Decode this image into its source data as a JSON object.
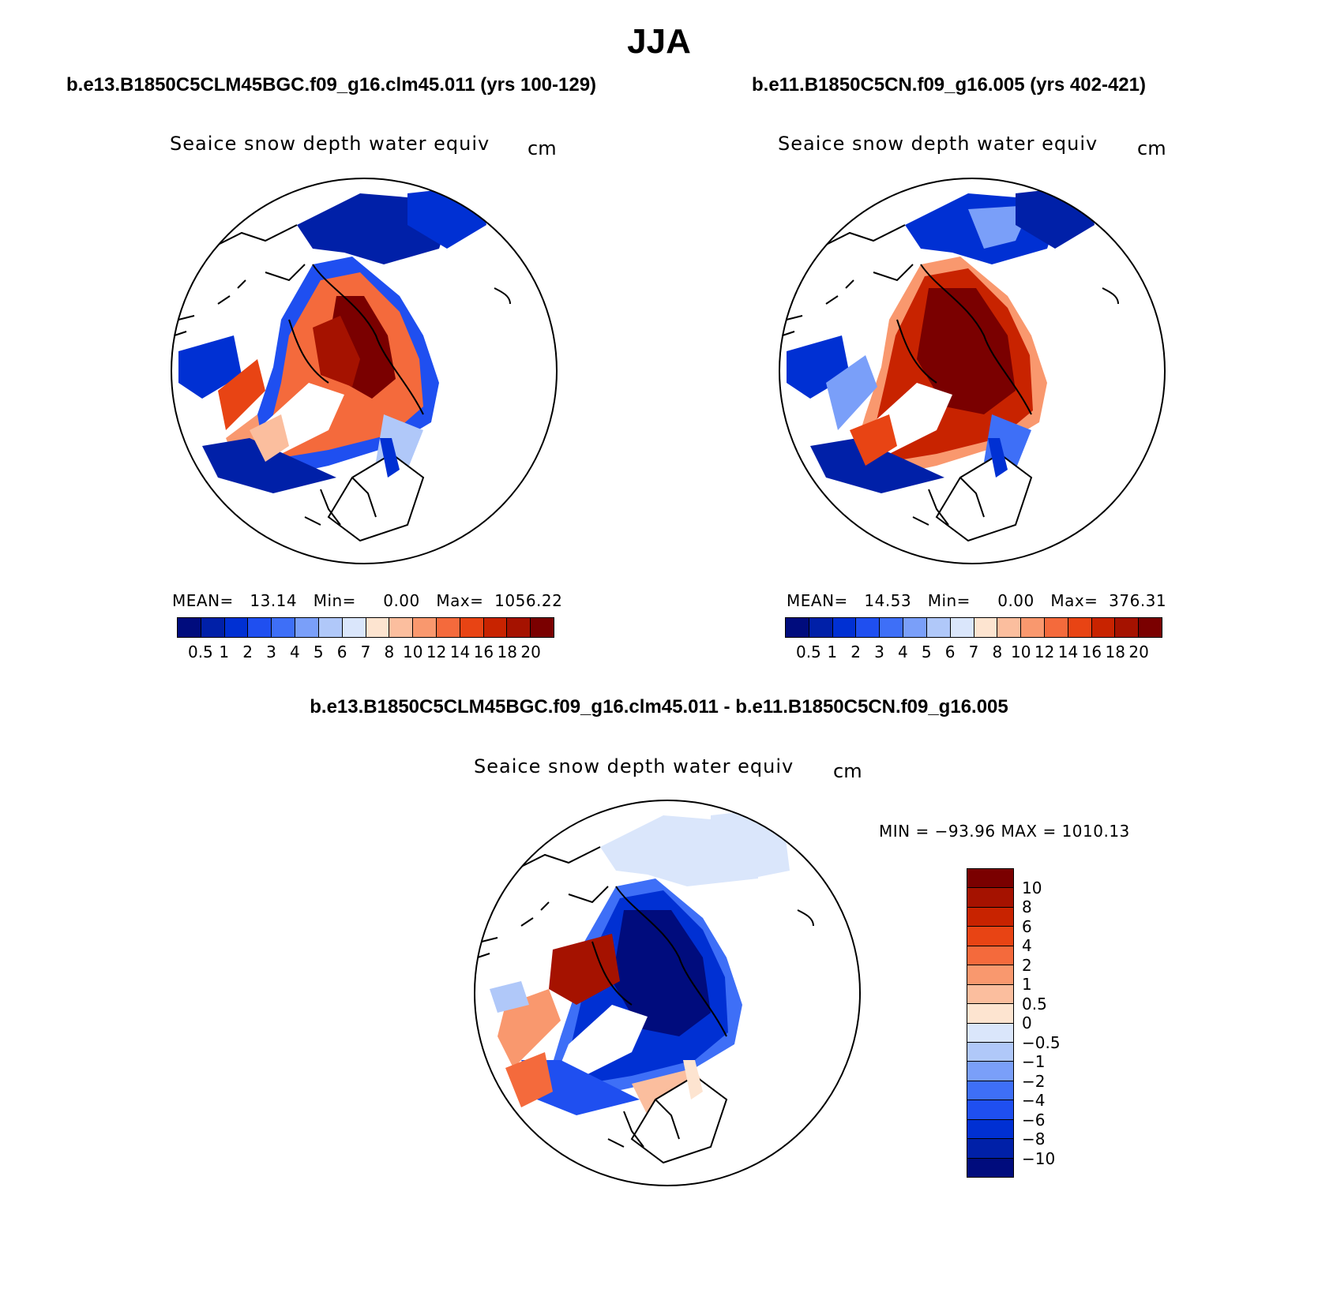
{
  "title": "JJA",
  "panels": [
    {
      "case_title": "b.e13.B1850C5CLM45BGC.f09_g16.clm45.011 (yrs 100-129)",
      "var_title": "Seaice snow depth water equiv",
      "units": "cm",
      "stats": "MEAN=   13.14   Min=     0.00   Max=  1056.22"
    },
    {
      "case_title": "b.e11.B1850C5CN.f09_g16.005 (yrs 402-421)",
      "var_title": "Seaice snow depth water equiv",
      "units": "cm",
      "stats": "MEAN=   14.53   Min=     0.00   Max=  376.31"
    }
  ],
  "diff_panel": {
    "case_title": "b.e13.B1850C5CLM45BGC.f09_g16.clm45.011 - b.e11.B1850C5CN.f09_g16.005",
    "var_title": "Seaice snow depth water equiv",
    "units": "cm",
    "stats": "MIN = −93.96 MAX = 1010.13"
  },
  "colorbar_main": {
    "labels": [
      "0.5",
      "1",
      "2",
      "3",
      "4",
      "5",
      "6",
      "7",
      "8",
      "10",
      "12",
      "14",
      "16",
      "18",
      "20"
    ],
    "colors": [
      "#000c7d",
      "#0020a8",
      "#0030d3",
      "#1f4ff0",
      "#3e6ff7",
      "#7a9ff9",
      "#b0c8f9",
      "#dae6fb",
      "#fde4d0",
      "#fbbe9e",
      "#f9986e",
      "#f46a3c",
      "#e84414",
      "#c82300",
      "#a51200",
      "#7a0000"
    ]
  },
  "colorbar_diff": {
    "labels": [
      "10",
      "8",
      "6",
      "4",
      "2",
      "1",
      "0.5",
      "0",
      "−0.5",
      "−1",
      "−2",
      "−4",
      "−6",
      "−8",
      "−10"
    ],
    "colors": [
      "#7a0000",
      "#a51200",
      "#c82300",
      "#e84414",
      "#f46a3c",
      "#f9986e",
      "#fbbe9e",
      "#fde4d0",
      "#dae6fb",
      "#b0c8f9",
      "#7a9ff9",
      "#3e6ff7",
      "#1f4ff0",
      "#0030d3",
      "#0020a8",
      "#000c7d"
    ]
  },
  "map_colors": {
    "deep_blue": "#0020a8",
    "mid_blue": "#1f4ff0",
    "light_blue": "#b0c8f9",
    "pale_blue": "#dae6fb",
    "orange": "#f46a3c",
    "red": "#c82300",
    "dark_red": "#7a0000",
    "pale_orange": "#fbbe9e"
  }
}
